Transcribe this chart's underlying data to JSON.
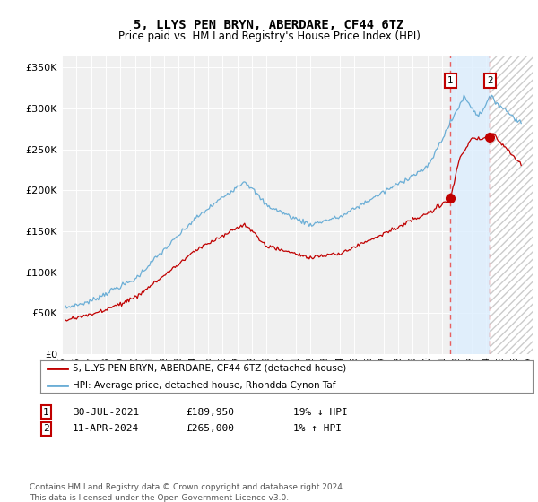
{
  "title": "5, LLYS PEN BRYN, ABERDARE, CF44 6TZ",
  "subtitle": "Price paid vs. HM Land Registry's House Price Index (HPI)",
  "ytick_values": [
    0,
    50000,
    100000,
    150000,
    200000,
    250000,
    300000,
    350000
  ],
  "ylim": [
    0,
    365000
  ],
  "xlim_start": 1995.3,
  "xlim_end": 2027.2,
  "hpi_color": "#6baed6",
  "price_color": "#c00000",
  "vline_color": "#e86060",
  "shade_color": "#ddeeff",
  "hatch_color": "#cccccc",
  "legend_label_red": "5, LLYS PEN BRYN, ABERDARE, CF44 6TZ (detached house)",
  "legend_label_blue": "HPI: Average price, detached house, Rhondda Cynon Taf",
  "transaction1_date": "30-JUL-2021",
  "transaction1_price": "£189,950",
  "transaction1_hpi": "19% ↓ HPI",
  "transaction2_date": "11-APR-2024",
  "transaction2_price": "£265,000",
  "transaction2_hpi": "1% ↑ HPI",
  "footer": "Contains HM Land Registry data © Crown copyright and database right 2024.\nThis data is licensed under the Open Government Licence v3.0.",
  "background_color": "#ffffff",
  "plot_bg_color": "#f0f0f0",
  "t1_x": 2021.58,
  "t2_x": 2024.28,
  "t1_y": 189950,
  "t2_y": 265000
}
